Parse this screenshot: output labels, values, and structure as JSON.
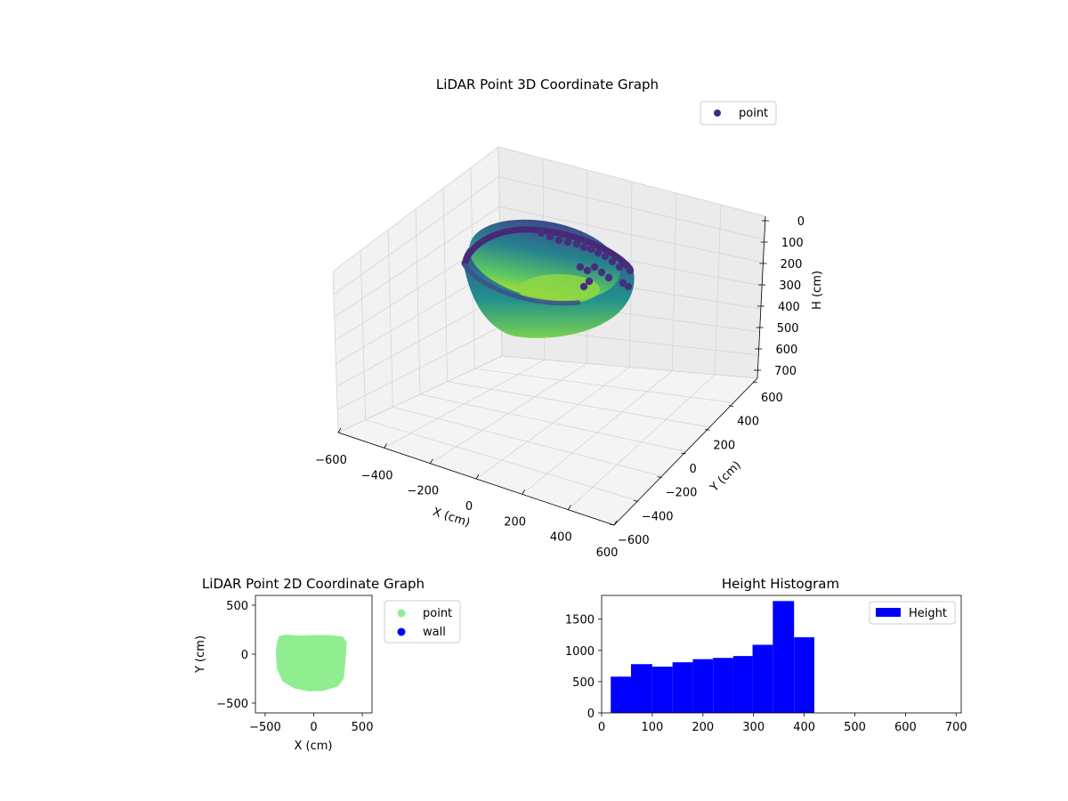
{
  "figure": {
    "background": "#ffffff"
  },
  "chart_data": [
    {
      "type": "scatter",
      "title": "LiDAR Point 3D Coordinate Graph",
      "xlabel": "X (cm)",
      "ylabel": "Y (cm)",
      "zlabel": "H (cm)",
      "xlim": [
        -600,
        600
      ],
      "ylim": [
        -600,
        600
      ],
      "zlim": [
        700,
        0
      ],
      "x_ticks": [
        "−600",
        "−400",
        "−200",
        "0",
        "200",
        "400",
        "600"
      ],
      "y_ticks": [
        "−600",
        "−400",
        "−200",
        "0",
        "200",
        "400",
        "600"
      ],
      "z_ticks": [
        "0",
        "100",
        "200",
        "300",
        "400",
        "500",
        "600",
        "700"
      ],
      "legend": {
        "position": "top-right",
        "entries": [
          {
            "label": "point",
            "color": "#472c7a"
          }
        ]
      },
      "colormap": "viridis",
      "grid": true
    },
    {
      "type": "scatter",
      "title": "LiDAR Point 2D Coordinate Graph",
      "xlabel": "X (cm)",
      "ylabel": "Y (cm)",
      "xlim": [
        -600,
        600
      ],
      "ylim": [
        -600,
        600
      ],
      "x_ticks": [
        "−500",
        "0",
        "500"
      ],
      "y_ticks": [
        "500",
        "0",
        "−500"
      ],
      "legend": {
        "position": "outside-right",
        "entries": [
          {
            "label": "point",
            "color": "#90ee90"
          },
          {
            "label": "wall",
            "color": "#0000ff"
          }
        ]
      },
      "series": [
        {
          "name": "point",
          "color": "#90ee90",
          "extent": {
            "x": [
              -390,
              340
            ],
            "y": [
              -380,
              200
            ]
          }
        }
      ]
    },
    {
      "type": "bar",
      "title": "Height Histogram",
      "xlim": [
        0,
        710
      ],
      "ylim": [
        0,
        1880
      ],
      "x_ticks": [
        "0",
        "100",
        "200",
        "300",
        "400",
        "500",
        "600",
        "700"
      ],
      "y_ticks": [
        "0",
        "500",
        "1000",
        "1500"
      ],
      "legend": {
        "position": "top-right",
        "entries": [
          {
            "label": "Height",
            "color": "#0000ff"
          }
        ]
      },
      "bar_color": "#0000ff",
      "bins": [
        18,
        58,
        100,
        140,
        180,
        220,
        260,
        298,
        338,
        380
      ],
      "series": [
        {
          "name": "Height",
          "values": [
            580,
            780,
            740,
            810,
            860,
            880,
            910,
            1090,
            1790,
            1210
          ]
        }
      ]
    }
  ]
}
